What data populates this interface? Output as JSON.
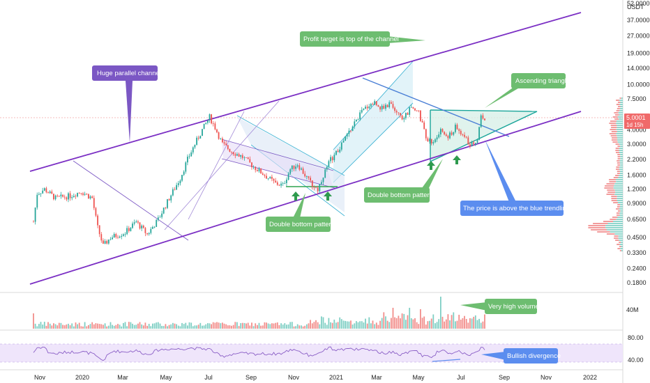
{
  "chart_data": {
    "type": "candlestick",
    "title": "",
    "currency": "USDT",
    "price_axis": {
      "scale": "log",
      "ticks": [
        "52.0000",
        "37.0000",
        "27.0000",
        "19.0000",
        "14.0000",
        "10.0000",
        "7.5000",
        "5.5000",
        "4.0000",
        "3.0000",
        "2.2000",
        "1.6000",
        "1.2000",
        "0.9000",
        "0.6500",
        "0.4500",
        "0.3300",
        "0.2400",
        "0.1800"
      ]
    },
    "current_price": "5.0001",
    "countdown": "1d 15h",
    "time_axis": [
      "Nov",
      "2020",
      "Mar",
      "May",
      "Jul",
      "Sep",
      "Nov",
      "2021",
      "Mar",
      "May",
      "Jul",
      "Sep",
      "Nov",
      "2022"
    ],
    "volume": {
      "label": "40M"
    },
    "rsi": {
      "levels": [
        "80.00",
        "40.00"
      ]
    },
    "annotations": [
      {
        "id": "channel",
        "text": "Huge parallel channel",
        "color": "#7b57c4"
      },
      {
        "id": "target",
        "text": "Profit target is top of the channel",
        "color": "#6dbd70"
      },
      {
        "id": "triangle",
        "text": "Ascending triangle",
        "color": "#6dbd70"
      },
      {
        "id": "dbl1",
        "text": "Double bottom pattern",
        "color": "#6dbd70"
      },
      {
        "id": "dbl2",
        "text": "Double bottom pattern",
        "color": "#6dbd70"
      },
      {
        "id": "trend",
        "text": "The price is above the blue trendline.",
        "color": "#5b8def"
      },
      {
        "id": "volume",
        "text": "Very high volume",
        "color": "#6dbd70"
      },
      {
        "id": "div",
        "text": "Bullish divergence",
        "color": "#5b8def"
      }
    ],
    "price_path": [
      {
        "t": 0,
        "v": 0.62
      },
      {
        "t": 2,
        "v": 1.1
      },
      {
        "t": 6,
        "v": 1.2
      },
      {
        "t": 12,
        "v": 1.0
      },
      {
        "t": 20,
        "v": 1.05
      },
      {
        "t": 26,
        "v": 1.15
      },
      {
        "t": 32,
        "v": 1.0
      },
      {
        "t": 35,
        "v": 0.55
      },
      {
        "t": 38,
        "v": 0.38
      },
      {
        "t": 42,
        "v": 0.45
      },
      {
        "t": 50,
        "v": 0.5
      },
      {
        "t": 56,
        "v": 0.62
      },
      {
        "t": 62,
        "v": 0.48
      },
      {
        "t": 68,
        "v": 0.65
      },
      {
        "t": 74,
        "v": 1.0
      },
      {
        "t": 80,
        "v": 1.5
      },
      {
        "t": 84,
        "v": 2.2
      },
      {
        "t": 88,
        "v": 3.0
      },
      {
        "t": 92,
        "v": 4.0
      },
      {
        "t": 96,
        "v": 5.2
      },
      {
        "t": 99,
        "v": 4.2
      },
      {
        "t": 103,
        "v": 3.0
      },
      {
        "t": 108,
        "v": 2.6
      },
      {
        "t": 114,
        "v": 2.3
      },
      {
        "t": 120,
        "v": 1.9
      },
      {
        "t": 126,
        "v": 1.6
      },
      {
        "t": 132,
        "v": 1.35
      },
      {
        "t": 136,
        "v": 1.3
      },
      {
        "t": 140,
        "v": 1.8
      },
      {
        "t": 144,
        "v": 2.0
      },
      {
        "t": 148,
        "v": 1.6
      },
      {
        "t": 152,
        "v": 1.3
      },
      {
        "t": 155,
        "v": 1.2
      },
      {
        "t": 158,
        "v": 1.6
      },
      {
        "t": 162,
        "v": 2.2
      },
      {
        "t": 166,
        "v": 2.6
      },
      {
        "t": 170,
        "v": 3.4
      },
      {
        "t": 174,
        "v": 4.3
      },
      {
        "t": 178,
        "v": 5.5
      },
      {
        "t": 182,
        "v": 6.5
      },
      {
        "t": 186,
        "v": 7.0
      },
      {
        "t": 190,
        "v": 6.2
      },
      {
        "t": 194,
        "v": 6.8
      },
      {
        "t": 198,
        "v": 5.5
      },
      {
        "t": 202,
        "v": 5.0
      },
      {
        "t": 206,
        "v": 6.5
      },
      {
        "t": 210,
        "v": 5.6
      },
      {
        "t": 214,
        "v": 3.5
      },
      {
        "t": 218,
        "v": 3.0
      },
      {
        "t": 222,
        "v": 4.0
      },
      {
        "t": 226,
        "v": 3.4
      },
      {
        "t": 230,
        "v": 4.2
      },
      {
        "t": 234,
        "v": 3.6
      },
      {
        "t": 238,
        "v": 3.0
      },
      {
        "t": 242,
        "v": 3.3
      },
      {
        "t": 244,
        "v": 5.4
      },
      {
        "t": 246,
        "v": 5.0
      }
    ]
  }
}
